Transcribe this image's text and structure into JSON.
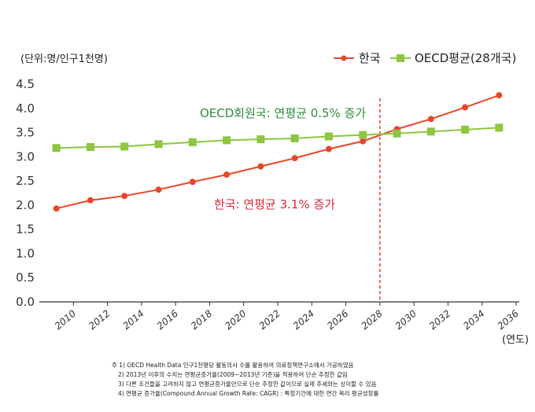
{
  "chart_data": {
    "type": "line",
    "unit_label": "(단위:명/인구1천명)",
    "x_unit_label": "(연도)",
    "ylim": [
      0.0,
      4.5
    ],
    "y_ticks": [
      "0.0",
      "0.5",
      "1.0",
      "1.5",
      "2.0",
      "2.5",
      "3.0",
      "3.5",
      "4.0",
      "4.5"
    ],
    "x_ticks": [
      "2010",
      "2012",
      "2014",
      "2016",
      "2018",
      "2020",
      "2022",
      "2024",
      "2026",
      "2028",
      "2030",
      "2032",
      "2034",
      "2036"
    ],
    "xlim": [
      2008,
      2036
    ],
    "vline_year": 2028,
    "legend_position": "top-right",
    "series": [
      {
        "name": "한국",
        "color": "#e8462a",
        "marker": "circle",
        "x": [
          2009,
          2011,
          2013,
          2015,
          2017,
          2019,
          2021,
          2023,
          2025,
          2027,
          2029,
          2031,
          2033,
          2035
        ],
        "values": [
          1.93,
          2.1,
          2.19,
          2.32,
          2.48,
          2.63,
          2.8,
          2.97,
          3.16,
          3.32,
          3.57,
          3.78,
          4.02,
          4.27
        ]
      },
      {
        "name": "OECD평균(28개국)",
        "color": "#8dc63f",
        "marker": "square",
        "x": [
          2009,
          2011,
          2013,
          2015,
          2017,
          2019,
          2021,
          2023,
          2025,
          2027,
          2029,
          2031,
          2033,
          2035
        ],
        "values": [
          3.18,
          3.2,
          3.21,
          3.26,
          3.3,
          3.34,
          3.36,
          3.38,
          3.42,
          3.45,
          3.48,
          3.52,
          3.56,
          3.6
        ]
      }
    ],
    "annotations": [
      {
        "text": "OECD회원국: 연평균 0.5% 증가",
        "color": "#2e8b3a",
        "x": 2017,
        "y": 3.9
      },
      {
        "text": "한국: 연평균 3.1% 증가",
        "color": "#d6283a",
        "x": 2021,
        "y": 2.05
      }
    ]
  },
  "notes": [
    "주 1) OECD Health Data 인구1천명당 활동의사 수를 활용하여 의료정책연구소에서 가공하였음",
    "2) 2013년 이후의 수치는 연평균증가율(2009~2013년 기준)을 적용하여 단순 추정한 값임",
    "3) 다른 조건들을 고려하지 않고 연평균증가율만으로 단순 추정한 값이므로 실제 추세와는 상이할 수 있음",
    "4) 연평균 증가율(Compound Annual Growth Rate: CAGR) : 특정기간에 대한 연간 복리 평균성장률"
  ]
}
